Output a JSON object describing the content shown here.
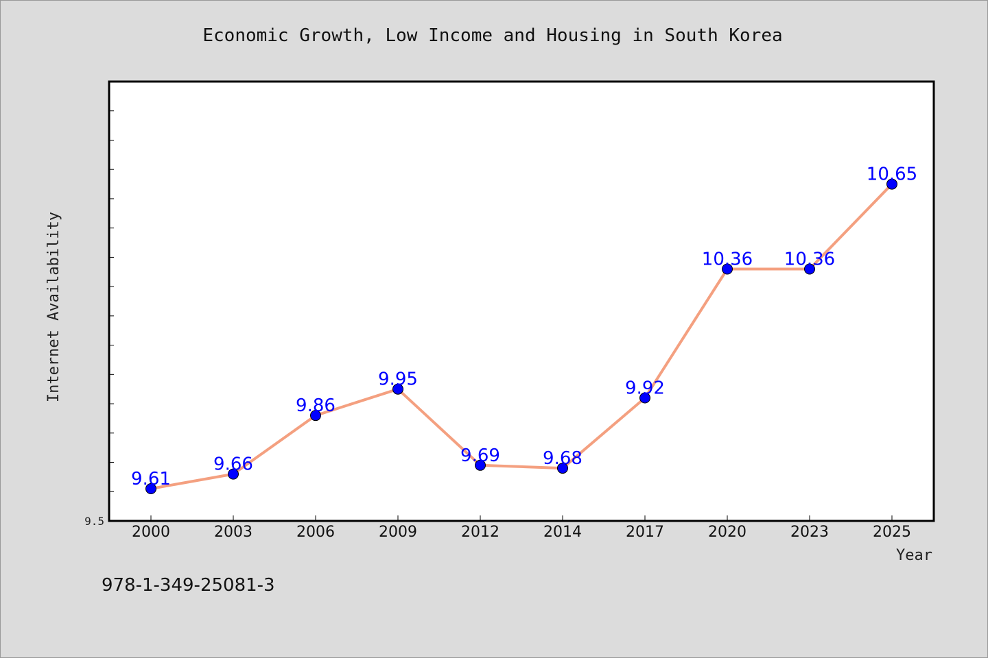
{
  "chart_data": {
    "type": "line",
    "title": "Economic Growth, Low Income and Housing in South Korea",
    "xlabel": "Year",
    "ylabel": "Internet Availability",
    "categories": [
      "2000",
      "2003",
      "2006",
      "2009",
      "2012",
      "2014",
      "2017",
      "2020",
      "2023",
      "2025"
    ],
    "series": [
      {
        "values": [
          9.61,
          9.66,
          9.86,
          9.95,
          9.69,
          9.68,
          9.92,
          10.36,
          10.36,
          10.65
        ],
        "labels": [
          "9.61",
          "9.66",
          "9.86",
          "9.95",
          "9.69",
          "9.68",
          "9.92",
          "10.36",
          "10.36",
          "10.65"
        ]
      }
    ],
    "ylim": [
      9.5,
      11.0
    ],
    "ytick_label": "9.5",
    "grid": false,
    "line_color": "#f4a080",
    "marker_color": "#0000ff"
  },
  "footer": {
    "isbn": "978-1-349-25081-3"
  }
}
